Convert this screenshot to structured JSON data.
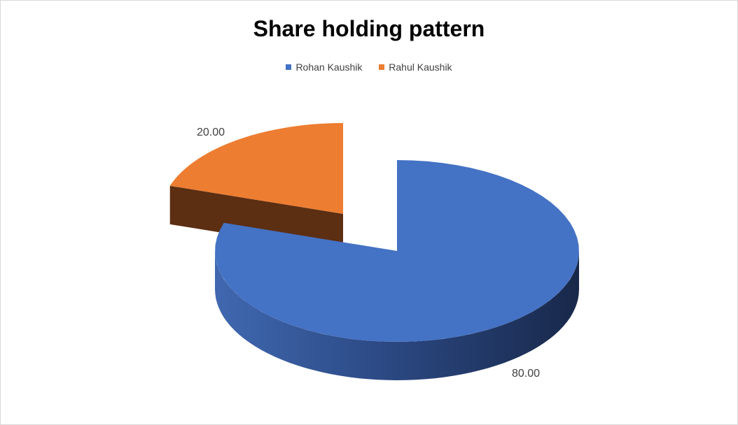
{
  "chart_data": {
    "type": "pie",
    "style": "3d-exploded",
    "title": "Share holding pattern",
    "legend_position": "top",
    "categories": [
      "Rohan Kaushik",
      "Rahul Kaushik"
    ],
    "values": [
      80.0,
      20.0
    ],
    "data_labels": [
      "80.00",
      "20.00"
    ],
    "colors": [
      "#4472c4",
      "#ed7d31"
    ]
  }
}
